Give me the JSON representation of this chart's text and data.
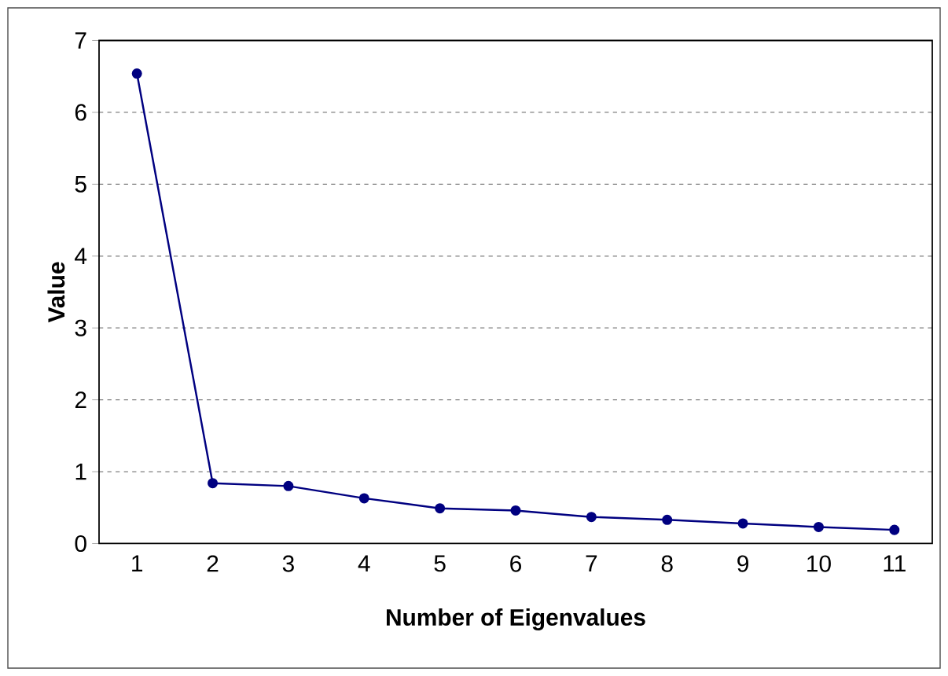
{
  "chart_data": {
    "type": "line",
    "xlabel": "Number of Eigenvalues",
    "ylabel": "Value",
    "categories": [
      "1",
      "2",
      "3",
      "4",
      "5",
      "6",
      "7",
      "8",
      "9",
      "10",
      "11"
    ],
    "series": [
      {
        "color": "#000080",
        "values": [
          6.54,
          0.84,
          0.8,
          0.63,
          0.49,
          0.46,
          0.37,
          0.33,
          0.28,
          0.23,
          0.19
        ]
      }
    ],
    "ylim": [
      0,
      7
    ],
    "yticks": [
      0,
      1,
      2,
      3,
      4,
      5,
      6,
      7
    ],
    "grid": "y",
    "marker": "circle",
    "line_style": "solid"
  }
}
